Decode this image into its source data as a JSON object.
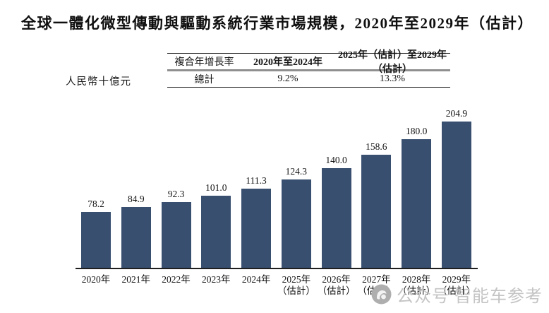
{
  "title": "全球一體化微型傳動與驅動系統行業市場規模，2020年至2029年（估計）",
  "unit_label": "人民幣十億元",
  "cagr_table": {
    "header": [
      "複合年增長率",
      "2020年至2024年",
      "2025年（估計）至2029年（估計）"
    ],
    "row": [
      "總計",
      "9.2%",
      "13.3%"
    ]
  },
  "chart_data": {
    "type": "bar",
    "title": "全球一體化微型傳動與驅動系統行業市場規模，2020年至2029年（估計）",
    "ylabel": "人民幣十億元",
    "xlabel": "",
    "ylim": [
      0,
      224
    ],
    "grid": false,
    "legend": "none",
    "bar_color": "#384f70",
    "categories": [
      "2020年",
      "2021年",
      "2022年",
      "2023年",
      "2024年",
      "2025年",
      "2026年",
      "2027年",
      "2028年",
      "2029年"
    ],
    "estimate_suffix": "（估計）",
    "estimate_from_index": 5,
    "values": [
      78.2,
      84.9,
      92.3,
      101.0,
      111.3,
      124.3,
      140.0,
      158.6,
      180.0,
      204.9
    ],
    "value_labels": [
      "78.2",
      "84.9",
      "92.3",
      "101.0",
      "111.3",
      "124.3",
      "140.0",
      "158.6",
      "180.0",
      "204.9"
    ]
  },
  "watermark": {
    "icon": "wechat-official-account-icon",
    "text_1": "公众号",
    "text_2": "智能车参考",
    "color": "#c4c4c4"
  }
}
